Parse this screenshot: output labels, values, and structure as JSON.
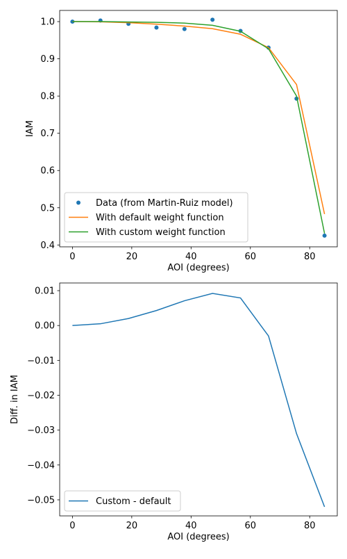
{
  "chart_data": [
    {
      "type": "line",
      "xlabel": "AOI (degrees)",
      "ylabel": "IAM",
      "xlim": [
        -4.3,
        89.3
      ],
      "ylim": [
        0.395,
        1.03
      ],
      "xticks": [
        0,
        20,
        40,
        60,
        80
      ],
      "yticks": [
        0.4,
        0.5,
        0.6,
        0.7,
        0.8,
        0.9,
        1.0
      ],
      "ytick_labels": [
        "0.4",
        "0.5",
        "0.6",
        "0.7",
        "0.8",
        "0.9",
        "1.0"
      ],
      "legend_position": "lower-left",
      "series": [
        {
          "name": "Data (from Martin-Ruiz model)",
          "style": "markers",
          "color": "#1f77b4",
          "x": [
            0,
            9.44,
            18.89,
            28.33,
            37.78,
            47.22,
            56.67,
            66.11,
            75.56,
            85
          ],
          "y": [
            1.0,
            1.003,
            0.994,
            0.984,
            0.98,
            1.005,
            0.975,
            0.93,
            0.793,
            0.425
          ]
        },
        {
          "name": "With default weight function",
          "style": "line",
          "color": "#ff7f0e",
          "x": [
            0,
            9.44,
            18.89,
            28.33,
            37.78,
            47.22,
            56.67,
            66.11,
            75.56,
            85
          ],
          "y": [
            1.0,
            0.9995,
            0.997,
            0.993,
            0.988,
            0.981,
            0.966,
            0.93,
            0.831,
            0.483
          ]
        },
        {
          "name": "With custom weight function",
          "style": "line",
          "color": "#2ca02c",
          "x": [
            0,
            9.44,
            18.89,
            28.33,
            37.78,
            47.22,
            56.67,
            66.11,
            75.56,
            85
          ],
          "y": [
            1.0,
            1.0,
            0.999,
            0.998,
            0.996,
            0.99,
            0.974,
            0.927,
            0.8,
            0.431
          ]
        }
      ]
    },
    {
      "type": "line",
      "xlabel": "AOI (degrees)",
      "ylabel": "Diff. in IAM",
      "xlim": [
        -4.3,
        89.3
      ],
      "ylim": [
        -0.0546,
        0.0122
      ],
      "xticks": [
        0,
        20,
        40,
        60,
        80
      ],
      "yticks": [
        0.01,
        0.0,
        -0.01,
        -0.02,
        -0.03,
        -0.04,
        -0.05
      ],
      "ytick_labels": [
        "0.01",
        "0.00",
        "−0.01",
        "−0.02",
        "−0.03",
        "−0.04",
        "−0.05"
      ],
      "legend_position": "lower-left",
      "series": [
        {
          "name": "Custom - default",
          "style": "line",
          "color": "#1f77b4",
          "x": [
            0,
            9.44,
            18.89,
            28.33,
            37.78,
            47.22,
            56.67,
            66.11,
            75.56,
            85
          ],
          "y": [
            0.0,
            0.0005,
            0.002,
            0.0043,
            0.0071,
            0.0092,
            0.0079,
            -0.003,
            -0.031,
            -0.052
          ]
        }
      ]
    }
  ]
}
